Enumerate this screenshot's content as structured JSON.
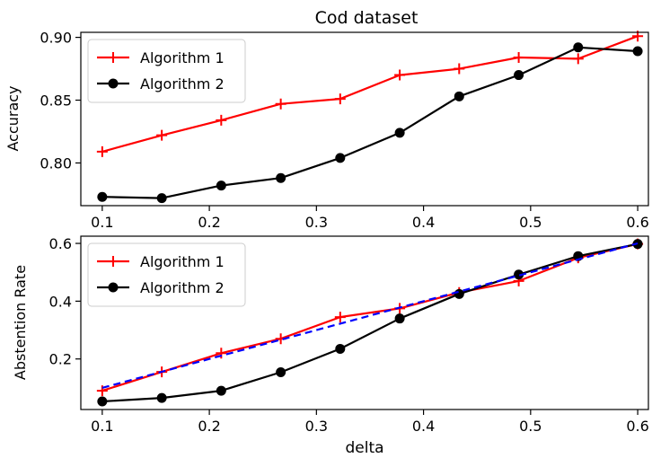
{
  "figure": {
    "title": "Cod dataset"
  },
  "chart_data": [
    {
      "type": "line",
      "title": "Cod dataset",
      "xlabel": "",
      "ylabel": "Accuracy",
      "xlim": [
        0.08,
        0.61
      ],
      "ylim": [
        0.766,
        0.904
      ],
      "xticks": [
        0.1,
        0.2,
        0.3,
        0.4,
        0.5,
        0.6
      ],
      "xtick_labels": [
        "0.1",
        "0.2",
        "0.3",
        "0.4",
        "0.5",
        "0.6"
      ],
      "yticks": [
        0.8,
        0.85,
        0.9
      ],
      "ytick_labels": [
        "0.80",
        "0.85",
        "0.90"
      ],
      "grid": false,
      "legend": "upper-left",
      "x": [
        0.1,
        0.1556,
        0.2111,
        0.2667,
        0.3222,
        0.3778,
        0.4333,
        0.4889,
        0.5444,
        0.6
      ],
      "series": [
        {
          "name": "Algorithm 1",
          "color": "#ff0000",
          "marker": "plus",
          "values": [
            0.809,
            0.822,
            0.834,
            0.847,
            0.851,
            0.87,
            0.875,
            0.884,
            0.883,
            0.901
          ]
        },
        {
          "name": "Algorithm 2",
          "color": "#000000",
          "marker": "circle",
          "values": [
            0.773,
            0.772,
            0.782,
            0.788,
            0.804,
            0.824,
            0.853,
            0.87,
            0.892,
            0.889
          ]
        }
      ]
    },
    {
      "type": "line",
      "title": "",
      "xlabel": "delta",
      "ylabel": "Abstention Rate",
      "xlim": [
        0.08,
        0.61
      ],
      "ylim": [
        0.025,
        0.625
      ],
      "xticks": [
        0.1,
        0.2,
        0.3,
        0.4,
        0.5,
        0.6
      ],
      "xtick_labels": [
        "0.1",
        "0.2",
        "0.3",
        "0.4",
        "0.5",
        "0.6"
      ],
      "yticks": [
        0.2,
        0.4,
        0.6
      ],
      "ytick_labels": [
        "0.2",
        "0.4",
        "0.6"
      ],
      "grid": false,
      "legend": "upper-left",
      "x": [
        0.1,
        0.1556,
        0.2111,
        0.2667,
        0.3222,
        0.3778,
        0.4333,
        0.4889,
        0.5444,
        0.6
      ],
      "series": [
        {
          "name": "Algorithm 1",
          "color": "#ff0000",
          "marker": "plus",
          "values": [
            0.09,
            0.155,
            0.22,
            0.27,
            0.345,
            0.375,
            0.43,
            0.47,
            0.55,
            0.598
          ]
        },
        {
          "name": "Algorithm 2",
          "color": "#000000",
          "marker": "circle",
          "values": [
            0.053,
            0.065,
            0.09,
            0.154,
            0.235,
            0.34,
            0.425,
            0.492,
            0.556,
            0.598
          ]
        },
        {
          "color": "#0000ff",
          "marker": "none",
          "dash": true,
          "values": [
            0.1,
            0.1556,
            0.2111,
            0.2667,
            0.3222,
            0.3778,
            0.4333,
            0.4889,
            0.5444,
            0.6
          ]
        }
      ]
    }
  ]
}
